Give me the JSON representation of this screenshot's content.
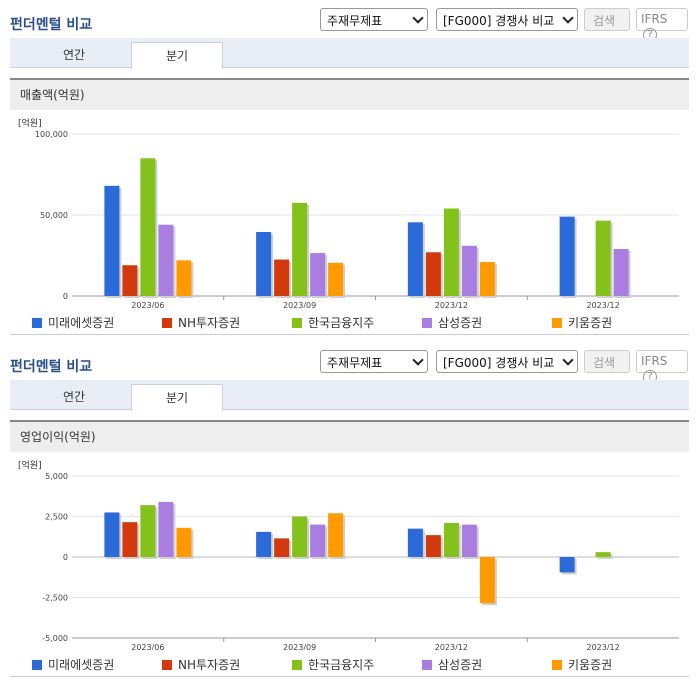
{
  "panels": [
    {
      "title": "펀더멘털 비교",
      "select1": "주재무제표",
      "select2": "[FG000] 경쟁사 비교",
      "search_label": "검색",
      "ifrs_label": "IFRS",
      "help_label": "?",
      "tabs": [
        "연간",
        "분기"
      ],
      "subtitle": "매출액(억원)"
    },
    {
      "title": "펀더멘털 비교",
      "select1": "주재무제표",
      "select2": "[FG000] 경쟁사 비교",
      "search_label": "검색",
      "ifrs_label": "IFRS",
      "help_label": "?",
      "tabs": [
        "연간",
        "분기"
      ],
      "subtitle": "영업이익(억원)"
    }
  ],
  "colors": [
    "#2a6ad9",
    "#d23a0e",
    "#84c11b",
    "#a97ee0",
    "#ff9b00"
  ],
  "chart_data": [
    {
      "type": "bar",
      "unit": "[억원]",
      "categories": [
        "2023/06",
        "2023/09",
        "2023/12",
        "2023/12"
      ],
      "series": [
        {
          "name": "미래에셋증권",
          "values": [
            68000,
            39500,
            45500,
            49000
          ]
        },
        {
          "name": "NH투자증권",
          "values": [
            19000,
            22500,
            27000,
            null
          ]
        },
        {
          "name": "한국금융지주",
          "values": [
            85000,
            57500,
            54000,
            46500
          ]
        },
        {
          "name": "삼성증권",
          "values": [
            44000,
            26500,
            31000,
            29000
          ]
        },
        {
          "name": "키움증권",
          "values": [
            22000,
            20500,
            21000,
            null
          ]
        }
      ],
      "ylim": [
        0,
        100000
      ],
      "yticks": [
        0,
        50000,
        100000
      ],
      "ytick_labels": [
        "0",
        "50,000",
        "100,000"
      ],
      "grid": true,
      "legend": "bottom"
    },
    {
      "type": "bar",
      "unit": "[억원]",
      "categories": [
        "2023/06",
        "2023/09",
        "2023/12",
        "2023/12"
      ],
      "series": [
        {
          "name": "미래에셋증권",
          "values": [
            2750,
            1550,
            1750,
            -950
          ]
        },
        {
          "name": "NH투자증권",
          "values": [
            2150,
            1150,
            1350,
            null
          ]
        },
        {
          "name": "한국금융지주",
          "values": [
            3200,
            2500,
            2100,
            300
          ]
        },
        {
          "name": "삼성증권",
          "values": [
            3400,
            2000,
            2000,
            null
          ]
        },
        {
          "name": "키움증권",
          "values": [
            1800,
            2700,
            -2850,
            null
          ]
        }
      ],
      "ylim": [
        -5000,
        5000
      ],
      "yticks": [
        -5000,
        -2500,
        0,
        2500,
        5000
      ],
      "ytick_labels": [
        "-5,000",
        "-2,500",
        "0",
        "2,500",
        "5,000"
      ],
      "grid": true,
      "legend": "bottom"
    }
  ]
}
